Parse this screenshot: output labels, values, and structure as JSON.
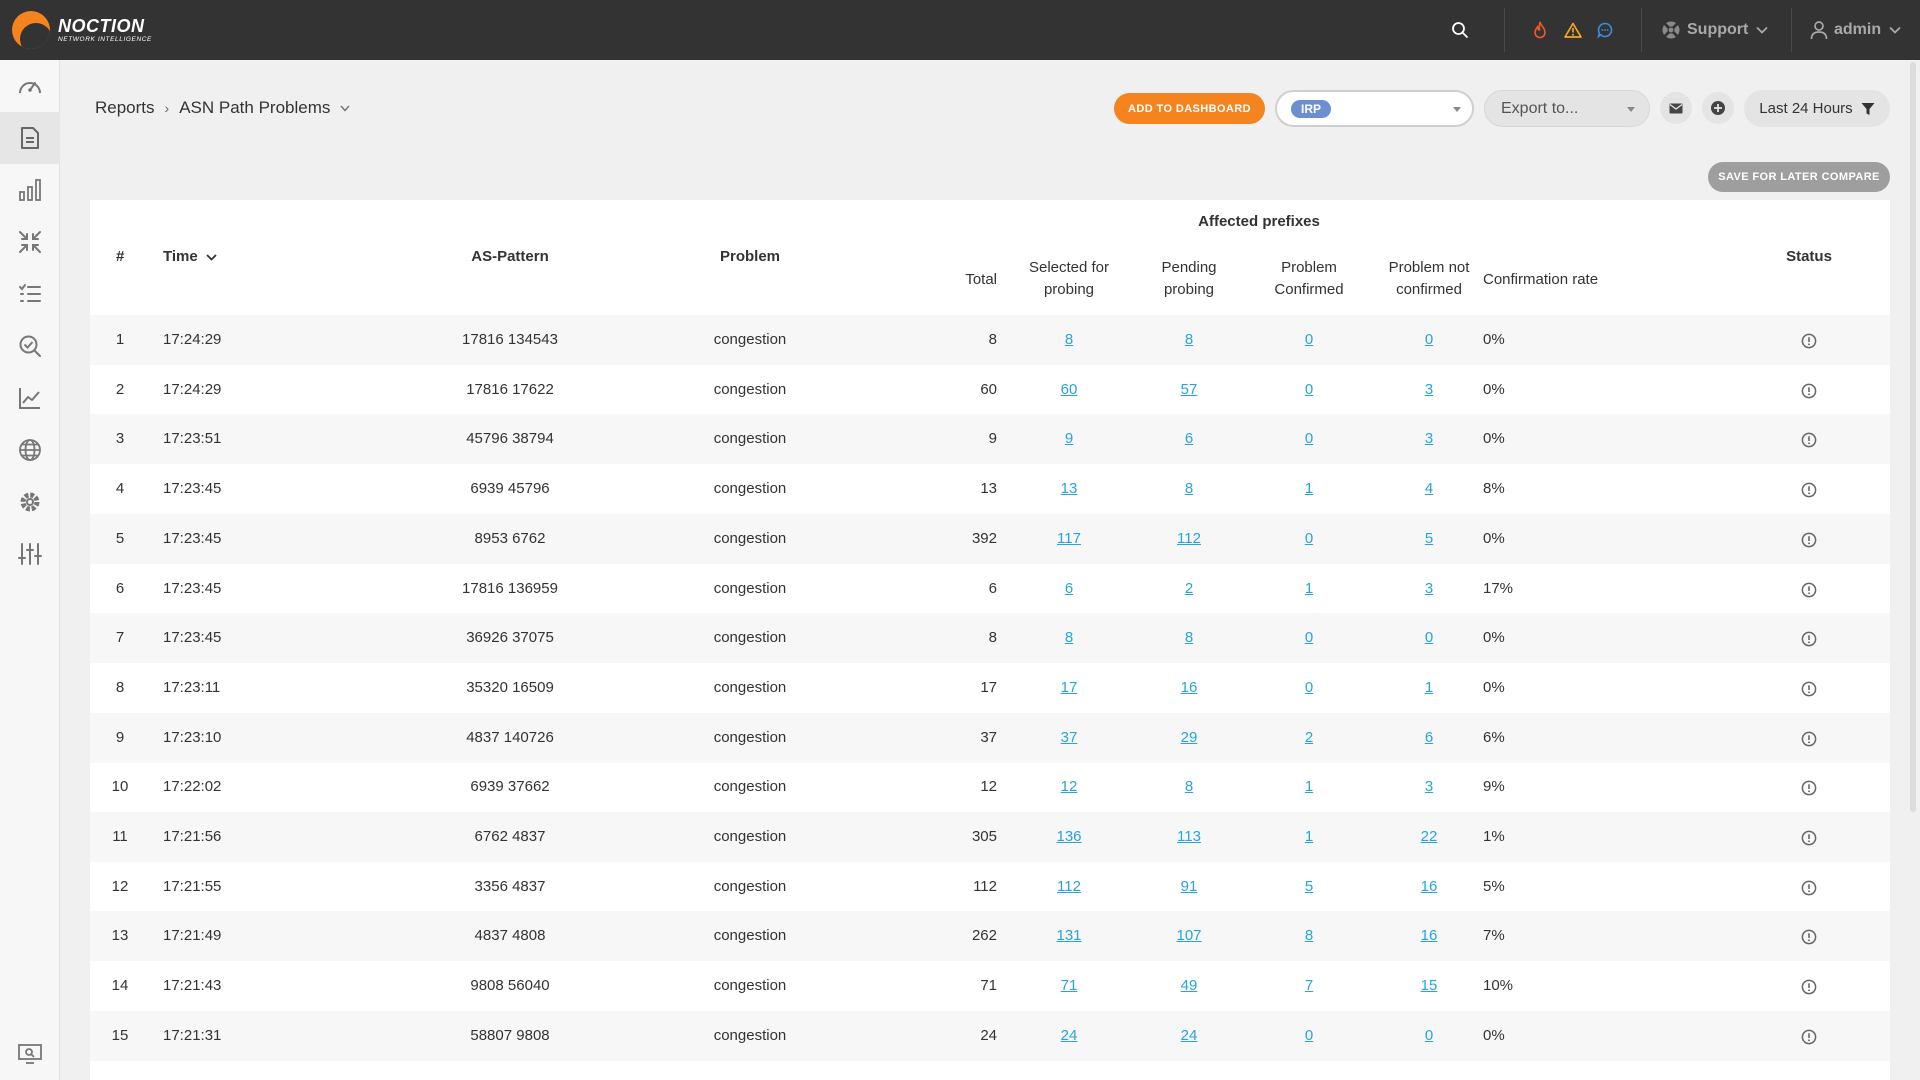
{
  "app": {
    "brand_name": "NOCTION",
    "brand_tagline": "NETWORK INTELLIGENCE",
    "colors": {
      "topbar": "#333333",
      "accent": "#f5841f",
      "link": "#27a3e0",
      "irp_tag": "#6b8fd1"
    }
  },
  "topbar": {
    "icons": [
      "search-icon",
      "fire-icon",
      "warning-icon",
      "chat-icon"
    ],
    "support_label": "Support",
    "user_label": "admin"
  },
  "sidebar": {
    "items": [
      "dashboard-icon",
      "reports-icon",
      "bar-chart-icon",
      "collapse-icon",
      "list-check-icon",
      "search-check-icon",
      "line-chart-icon",
      "globe-icon",
      "settings-icon",
      "sliders-icon",
      "monitor-search-icon"
    ],
    "active_index": 1
  },
  "header": {
    "breadcrumb_root": "Reports",
    "breadcrumb_current": "ASN Path Problems",
    "add_to_dashboard": "ADD TO DASHBOARD",
    "provider_tag": "IRP",
    "export_placeholder": "Export to...",
    "time_range": "Last 24 Hours",
    "save_compare": "SAVE FOR LATER COMPARE"
  },
  "table": {
    "columns": {
      "num": "#",
      "time": "Time",
      "as_pattern": "AS-Pattern",
      "problem": "Problem",
      "affected_group": "Affected prefixes",
      "total": "Total",
      "selected_1": "Selected for",
      "selected_2": "probing",
      "pending_1": "Pending",
      "pending_2": "probing",
      "confirmed_1": "Problem",
      "confirmed_2": "Confirmed",
      "notconf_1": "Problem not",
      "notconf_2": "confirmed",
      "rate": "Confirmation rate",
      "status": "Status"
    },
    "rows": [
      {
        "n": "1",
        "time": "17:24:29",
        "as": "17816 134543",
        "problem": "congestion",
        "total": "8",
        "selected": "8",
        "pending": "8",
        "confirmed": "0",
        "notconf": "0",
        "rate": "0%"
      },
      {
        "n": "2",
        "time": "17:24:29",
        "as": "17816 17622",
        "problem": "congestion",
        "total": "60",
        "selected": "60",
        "pending": "57",
        "confirmed": "0",
        "notconf": "3",
        "rate": "0%"
      },
      {
        "n": "3",
        "time": "17:23:51",
        "as": "45796 38794",
        "problem": "congestion",
        "total": "9",
        "selected": "9",
        "pending": "6",
        "confirmed": "0",
        "notconf": "3",
        "rate": "0%"
      },
      {
        "n": "4",
        "time": "17:23:45",
        "as": "6939 45796",
        "problem": "congestion",
        "total": "13",
        "selected": "13",
        "pending": "8",
        "confirmed": "1",
        "notconf": "4",
        "rate": "8%"
      },
      {
        "n": "5",
        "time": "17:23:45",
        "as": "8953 6762",
        "problem": "congestion",
        "total": "392",
        "selected": "117",
        "pending": "112",
        "confirmed": "0",
        "notconf": "5",
        "rate": "0%"
      },
      {
        "n": "6",
        "time": "17:23:45",
        "as": "17816 136959",
        "problem": "congestion",
        "total": "6",
        "selected": "6",
        "pending": "2",
        "confirmed": "1",
        "notconf": "3",
        "rate": "17%"
      },
      {
        "n": "7",
        "time": "17:23:45",
        "as": "36926 37075",
        "problem": "congestion",
        "total": "8",
        "selected": "8",
        "pending": "8",
        "confirmed": "0",
        "notconf": "0",
        "rate": "0%"
      },
      {
        "n": "8",
        "time": "17:23:11",
        "as": "35320 16509",
        "problem": "congestion",
        "total": "17",
        "selected": "17",
        "pending": "16",
        "confirmed": "0",
        "notconf": "1",
        "rate": "0%"
      },
      {
        "n": "9",
        "time": "17:23:10",
        "as": "4837 140726",
        "problem": "congestion",
        "total": "37",
        "selected": "37",
        "pending": "29",
        "confirmed": "2",
        "notconf": "6",
        "rate": "6%"
      },
      {
        "n": "10",
        "time": "17:22:02",
        "as": "6939 37662",
        "problem": "congestion",
        "total": "12",
        "selected": "12",
        "pending": "8",
        "confirmed": "1",
        "notconf": "3",
        "rate": "9%"
      },
      {
        "n": "11",
        "time": "17:21:56",
        "as": "6762 4837",
        "problem": "congestion",
        "total": "305",
        "selected": "136",
        "pending": "113",
        "confirmed": "1",
        "notconf": "22",
        "rate": "1%"
      },
      {
        "n": "12",
        "time": "17:21:55",
        "as": "3356 4837",
        "problem": "congestion",
        "total": "112",
        "selected": "112",
        "pending": "91",
        "confirmed": "5",
        "notconf": "16",
        "rate": "5%"
      },
      {
        "n": "13",
        "time": "17:21:49",
        "as": "4837 4808",
        "problem": "congestion",
        "total": "262",
        "selected": "131",
        "pending": "107",
        "confirmed": "8",
        "notconf": "16",
        "rate": "7%"
      },
      {
        "n": "14",
        "time": "17:21:43",
        "as": "9808 56040",
        "problem": "congestion",
        "total": "71",
        "selected": "71",
        "pending": "49",
        "confirmed": "7",
        "notconf": "15",
        "rate": "10%"
      },
      {
        "n": "15",
        "time": "17:21:31",
        "as": "58807 9808",
        "problem": "congestion",
        "total": "24",
        "selected": "24",
        "pending": "24",
        "confirmed": "0",
        "notconf": "0",
        "rate": "0%"
      }
    ]
  }
}
